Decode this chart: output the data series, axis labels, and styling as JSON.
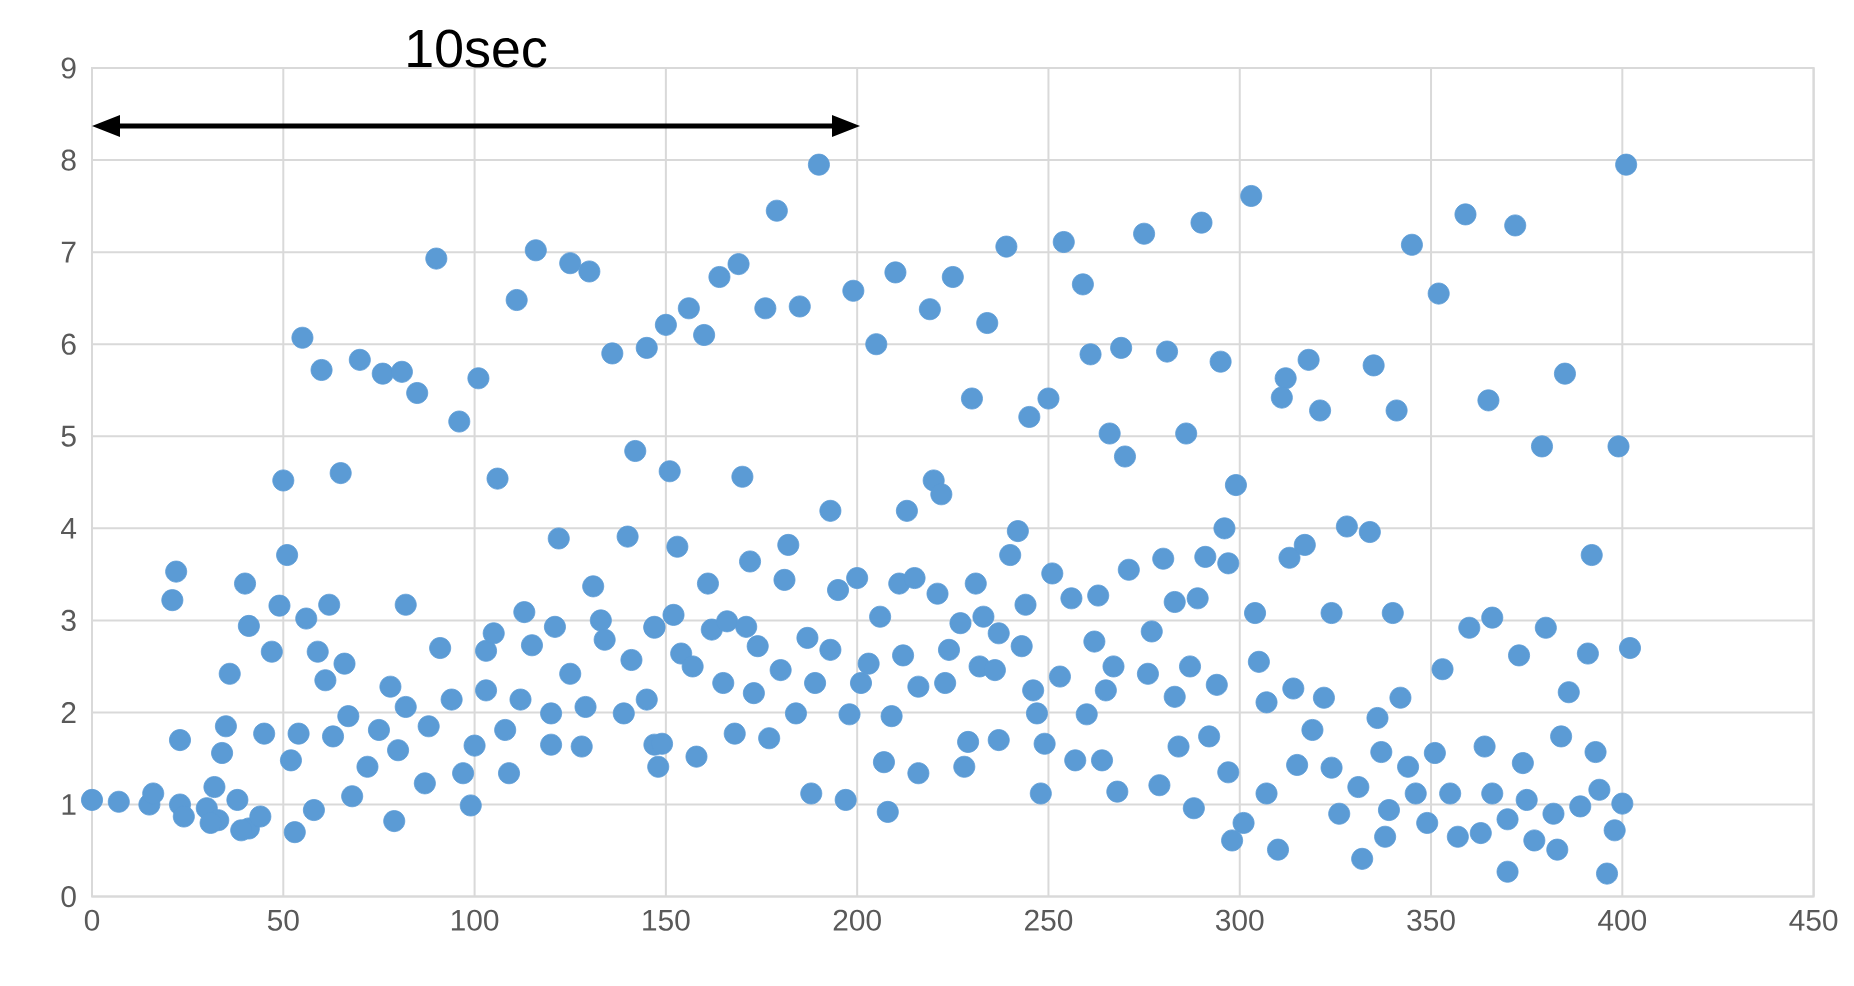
{
  "chart_data": {
    "type": "scatter",
    "color": "#5b9bd5",
    "marker": "circle",
    "grid": true,
    "xlim": [
      0,
      450
    ],
    "ylim": [
      0,
      9
    ],
    "xticks": [
      0,
      50,
      100,
      150,
      200,
      250,
      300,
      350,
      400,
      450
    ],
    "yticks": [
      0,
      1,
      2,
      3,
      4,
      5,
      6,
      7,
      8,
      9
    ],
    "annotations": [
      "10sec"
    ],
    "x": [
      0,
      7,
      15,
      23,
      30,
      33,
      41,
      16,
      22,
      21,
      23,
      35,
      36,
      40,
      41,
      47,
      50,
      51,
      49,
      55,
      60,
      65,
      70,
      76,
      81,
      85,
      90,
      96,
      101,
      106,
      111,
      116,
      125,
      130,
      136,
      145,
      142,
      122,
      140,
      82,
      62,
      56,
      113,
      131,
      133,
      147,
      91,
      103,
      105,
      115,
      121,
      125,
      134,
      141,
      59,
      66,
      61,
      78,
      82,
      88,
      94,
      103,
      112,
      120,
      129,
      139,
      147,
      45,
      52,
      54,
      63,
      67,
      75,
      80,
      72,
      100,
      108,
      120,
      128,
      34,
      97,
      109,
      87,
      68,
      58,
      53,
      79,
      99,
      44,
      39,
      31,
      24,
      32,
      38,
      150,
      156,
      160,
      164,
      169,
      176,
      179,
      185,
      190,
      199,
      205,
      210,
      219,
      225,
      234,
      239,
      230,
      245,
      250,
      254,
      259,
      261,
      269,
      275,
      281,
      290,
      295,
      266,
      270,
      286,
      151,
      170,
      193,
      213,
      220,
      222,
      242,
      240,
      153,
      172,
      182,
      181,
      161,
      195,
      200,
      211,
      215,
      221,
      231,
      244,
      251,
      256,
      263,
      271,
      280,
      283,
      289,
      291,
      296,
      299,
      297,
      147,
      152,
      154,
      157,
      162,
      166,
      171,
      174,
      165,
      173,
      180,
      184,
      189,
      187,
      193,
      198,
      203,
      206,
      201,
      212,
      216,
      223,
      224,
      227,
      233,
      237,
      243,
      232,
      236,
      246,
      253,
      247,
      260,
      262,
      267,
      265,
      277,
      276,
      283,
      287,
      294,
      145,
      149,
      148,
      158,
      168,
      177,
      209,
      207,
      216,
      228,
      229,
      237,
      249,
      257,
      264,
      284,
      292,
      297,
      188,
      197,
      208,
      248,
      268,
      279,
      288,
      298,
      303,
      345,
      359,
      372,
      401,
      352,
      312,
      311,
      318,
      321,
      335,
      341,
      365,
      385,
      379,
      399,
      313,
      317,
      328,
      334,
      392,
      304,
      324,
      340,
      360,
      366,
      380,
      373,
      391,
      402,
      353,
      305,
      314,
      307,
      322,
      342,
      386,
      319,
      336,
      364,
      384,
      393,
      337,
      351,
      374,
      315,
      324,
      331,
      344,
      346,
      355,
      366,
      375,
      382,
      389,
      394,
      400,
      307,
      326,
      339,
      349,
      357,
      363,
      370,
      377,
      383,
      398,
      396,
      370,
      301,
      310,
      332,
      338
    ],
    "values": [
      1.05,
      1.03,
      1.0,
      1.0,
      0.96,
      0.83,
      0.74,
      1.12,
      3.53,
      3.22,
      1.7,
      1.85,
      2.42,
      3.4,
      2.94,
      2.66,
      4.52,
      3.71,
      3.16,
      6.07,
      5.72,
      4.6,
      5.83,
      5.68,
      5.7,
      5.47,
      6.93,
      5.16,
      5.63,
      4.54,
      6.48,
      7.02,
      6.88,
      6.79,
      5.9,
      5.96,
      4.84,
      3.89,
      3.91,
      3.17,
      3.17,
      3.02,
      3.09,
      3.37,
      3.0,
      2.93,
      2.7,
      2.67,
      2.86,
      2.73,
      2.93,
      2.42,
      2.79,
      2.57,
      2.66,
      2.53,
      2.35,
      2.28,
      2.06,
      1.85,
      2.14,
      2.24,
      2.14,
      1.99,
      2.06,
      1.99,
      1.65,
      1.77,
      1.48,
      1.77,
      1.74,
      1.96,
      1.81,
      1.59,
      1.41,
      1.64,
      1.81,
      1.65,
      1.63,
      1.56,
      1.34,
      1.34,
      1.23,
      1.09,
      0.94,
      0.7,
      0.82,
      0.99,
      0.87,
      0.72,
      0.8,
      0.87,
      1.19,
      1.05,
      6.21,
      6.39,
      6.1,
      6.73,
      6.87,
      6.39,
      7.45,
      6.41,
      7.95,
      6.58,
      6.0,
      6.78,
      6.38,
      6.73,
      6.23,
      7.06,
      5.41,
      5.21,
      5.41,
      7.11,
      6.65,
      5.89,
      5.96,
      7.2,
      5.92,
      7.32,
      5.81,
      5.03,
      4.78,
      5.03,
      4.62,
      4.56,
      4.19,
      4.19,
      4.52,
      4.37,
      3.97,
      3.71,
      3.8,
      3.64,
      3.82,
      3.44,
      3.4,
      3.33,
      3.46,
      3.4,
      3.46,
      3.29,
      3.4,
      3.17,
      3.51,
      3.24,
      3.27,
      3.55,
      3.67,
      3.2,
      3.24,
      3.69,
      4.0,
      4.47,
      3.62,
      2.92,
      3.06,
      2.64,
      2.5,
      2.9,
      2.99,
      2.93,
      2.72,
      2.32,
      2.21,
      2.46,
      1.99,
      2.32,
      2.81,
      2.68,
      1.98,
      2.53,
      3.04,
      2.32,
      2.62,
      2.28,
      2.32,
      2.68,
      2.97,
      3.04,
      2.86,
      2.72,
      2.5,
      2.46,
      2.24,
      2.39,
      1.99,
      1.98,
      2.77,
      2.5,
      2.24,
      2.88,
      2.42,
      2.17,
      2.5,
      2.3,
      2.14,
      1.66,
      1.41,
      1.52,
      1.77,
      1.72,
      1.96,
      1.46,
      1.34,
      1.41,
      1.68,
      1.7,
      1.66,
      1.48,
      1.48,
      1.63,
      1.74,
      1.35,
      1.12,
      1.05,
      0.92,
      1.12,
      1.14,
      1.21,
      0.96,
      0.61,
      7.61,
      7.08,
      7.41,
      7.29,
      7.95,
      6.55,
      5.63,
      5.42,
      5.83,
      5.28,
      5.77,
      5.28,
      5.39,
      5.68,
      4.89,
      4.89,
      3.68,
      3.82,
      4.02,
      3.96,
      3.71,
      3.08,
      3.08,
      3.08,
      2.92,
      3.03,
      2.92,
      2.62,
      2.64,
      2.7,
      2.47,
      2.55,
      2.26,
      2.11,
      2.16,
      2.16,
      2.22,
      1.81,
      1.94,
      1.63,
      1.74,
      1.57,
      1.57,
      1.56,
      1.45,
      1.43,
      1.4,
      1.19,
      1.41,
      1.12,
      1.12,
      1.12,
      1.05,
      0.9,
      0.98,
      1.16,
      1.01,
      1.12,
      0.9,
      0.94,
      0.8,
      0.65,
      0.69,
      0.84,
      0.61,
      0.51,
      0.72,
      0.25,
      0.27,
      0.8,
      0.51,
      0.41,
      0.65
    ]
  }
}
